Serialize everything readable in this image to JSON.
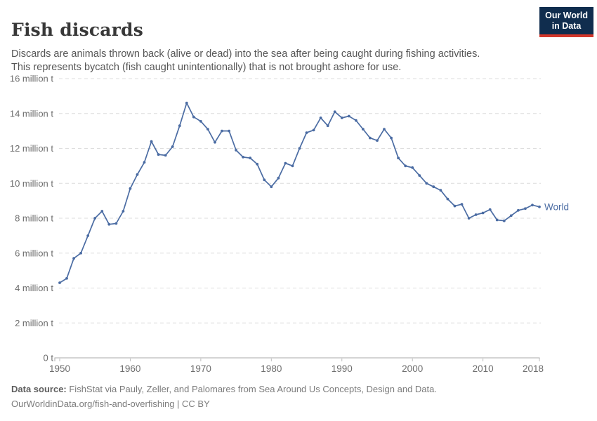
{
  "header": {
    "title": "Fish discards",
    "subtitle": [
      "Discards are animals thrown back (alive or dead) into the sea after being caught during fishing activities.",
      "This represents bycatch (fish caught unintentionally) that is not brought ashore for use."
    ],
    "logo": {
      "line1": "Our World",
      "line2": "in Data",
      "bg": "#102D4E",
      "accent": "#D3372B"
    }
  },
  "chart_data": {
    "type": "line",
    "title": "Fish discards",
    "unit": "million tonnes",
    "grid": "horizontal-dashed",
    "legend": "end-of-line-label",
    "xlim": [
      1950,
      2018
    ],
    "ylim": [
      0,
      16
    ],
    "x_tick_values": [
      1950,
      1960,
      1970,
      1980,
      1990,
      2000,
      2010,
      2018
    ],
    "x_tick_labels": [
      "1950",
      "1960",
      "1970",
      "1980",
      "1990",
      "2000",
      "2010",
      "2018"
    ],
    "y_tick_values": [
      0,
      2,
      4,
      6,
      8,
      10,
      12,
      14,
      16
    ],
    "y_tick_labels": [
      "0 t",
      "2 million t",
      "4 million t",
      "6 million t",
      "8 million t",
      "10 million t",
      "12 million t",
      "14 million t",
      "16 million t"
    ],
    "x": [
      1950,
      1951,
      1952,
      1953,
      1954,
      1955,
      1956,
      1957,
      1958,
      1959,
      1960,
      1961,
      1962,
      1963,
      1964,
      1965,
      1966,
      1967,
      1968,
      1969,
      1970,
      1971,
      1972,
      1973,
      1974,
      1975,
      1976,
      1977,
      1978,
      1979,
      1980,
      1981,
      1982,
      1983,
      1984,
      1985,
      1986,
      1987,
      1988,
      1989,
      1990,
      1991,
      1992,
      1993,
      1994,
      1995,
      1996,
      1997,
      1998,
      1999,
      2000,
      2001,
      2002,
      2003,
      2004,
      2005,
      2006,
      2007,
      2008,
      2009,
      2010,
      2011,
      2012,
      2013,
      2014,
      2015,
      2016,
      2017,
      2018
    ],
    "series": [
      {
        "name": "World",
        "color": "#4B6CA3",
        "values": [
          4.3,
          4.55,
          5.7,
          6.0,
          7.0,
          8.0,
          8.4,
          7.65,
          7.7,
          8.4,
          9.7,
          10.5,
          11.2,
          12.4,
          11.65,
          11.6,
          12.1,
          13.3,
          14.6,
          13.8,
          13.55,
          13.1,
          12.35,
          13.0,
          13.0,
          11.9,
          11.5,
          11.45,
          11.1,
          10.2,
          9.8,
          10.3,
          11.15,
          11.0,
          12.0,
          12.9,
          13.05,
          13.75,
          13.3,
          14.1,
          13.75,
          13.85,
          13.6,
          13.1,
          12.6,
          12.45,
          13.1,
          12.6,
          11.45,
          11.0,
          10.9,
          10.45,
          10.0,
          9.8,
          9.6,
          9.1,
          8.7,
          8.8,
          8.0,
          8.2,
          8.3,
          8.5,
          7.9,
          7.85,
          8.15,
          8.45,
          8.55,
          8.75,
          8.65
        ]
      }
    ]
  },
  "footer": {
    "source_label": "Data source:",
    "source_text": " FishStat via Pauly, Zeller, and Palomares from Sea Around Us Concepts, Design and Data.",
    "note": "OurWorldinData.org/fish-and-overfishing | CC BY"
  }
}
